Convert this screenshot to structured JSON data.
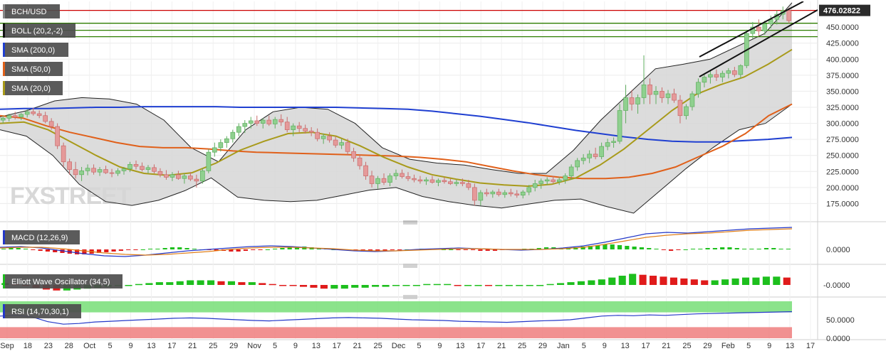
{
  "watermark": "FXSTREET",
  "chart_data": {
    "type": "candlestick",
    "symbol": "BCH/USD",
    "last_price": "476.02822",
    "x_ticks": [
      "Sep",
      "18",
      "23",
      "28",
      "Oct",
      "5",
      "9",
      "13",
      "17",
      "21",
      "25",
      "29",
      "Nov",
      "5",
      "9",
      "13",
      "17",
      "21",
      "25",
      "Dec",
      "5",
      "9",
      "13",
      "17",
      "21",
      "25",
      "29",
      "Jan",
      "5",
      "9",
      "13",
      "17",
      "21",
      "25",
      "29",
      "Feb",
      "5",
      "9",
      "13",
      "17"
    ],
    "price_axis": {
      "ticks": [
        "450.0000",
        "425.0000",
        "400.0000",
        "375.0000",
        "350.0000",
        "325.0000",
        "300.0000",
        "275.0000",
        "250.0000",
        "225.0000",
        "200.0000",
        "175.0000"
      ],
      "ylim": [
        150,
        490
      ]
    },
    "horizontal_levels": [
      {
        "value": 476,
        "color": "#cc0000"
      },
      {
        "value": 456,
        "color": "#2e7d00"
      },
      {
        "value": 445,
        "color": "#2e7d00"
      },
      {
        "value": 435,
        "color": "#2e7d00"
      }
    ],
    "indicators": [
      {
        "label": "BOLL (20,2,-2)",
        "color": "#111111"
      },
      {
        "label": "SMA (200,0)",
        "color": "#1f3fd1"
      },
      {
        "label": "SMA (50,0)",
        "color": "#e0601a"
      },
      {
        "label": "SMA (20,0)",
        "color": "#a89a1a"
      }
    ],
    "sma200": [
      322,
      323,
      323,
      324,
      325,
      325,
      326,
      326,
      326,
      326,
      325,
      325,
      325,
      325,
      325,
      324,
      323,
      322,
      319,
      315,
      311,
      306,
      301,
      295,
      289,
      284,
      279,
      275,
      272,
      271,
      271,
      273,
      275,
      278
    ],
    "sma50": [
      312,
      308,
      296,
      286,
      278,
      270,
      264,
      262,
      262,
      260,
      257,
      255,
      254,
      253,
      252,
      251,
      250,
      249,
      247,
      244,
      240,
      233,
      226,
      220,
      216,
      214,
      214,
      216,
      222,
      232,
      248,
      264,
      284,
      312,
      330
    ],
    "sma20": [
      300,
      302,
      290,
      270,
      250,
      232,
      222,
      219,
      223,
      238,
      258,
      272,
      284,
      286,
      280,
      265,
      247,
      232,
      220,
      213,
      207,
      204,
      202,
      205,
      215,
      235,
      260,
      290,
      320,
      345,
      360,
      372,
      392,
      415
    ],
    "boll_upper": [
      310,
      320,
      335,
      340,
      338,
      330,
      305,
      262,
      240,
      290,
      318,
      325,
      322,
      300,
      262,
      244,
      238,
      235,
      228,
      222,
      222,
      258,
      305,
      345,
      385,
      392,
      400,
      420,
      440,
      488
    ],
    "boll_lower": [
      290,
      280,
      250,
      205,
      178,
      172,
      180,
      195,
      215,
      185,
      180,
      178,
      180,
      188,
      196,
      200,
      186,
      178,
      172,
      168,
      174,
      180,
      182,
      170,
      160,
      195,
      230,
      262,
      290,
      300,
      330
    ],
    "candles": [
      {
        "o": 305,
        "h": 312,
        "l": 300,
        "c": 308
      },
      {
        "o": 308,
        "h": 315,
        "l": 303,
        "c": 312
      },
      {
        "o": 312,
        "h": 318,
        "l": 306,
        "c": 310
      },
      {
        "o": 310,
        "h": 316,
        "l": 305,
        "c": 314
      },
      {
        "o": 314,
        "h": 322,
        "l": 309,
        "c": 318
      },
      {
        "o": 318,
        "h": 324,
        "l": 312,
        "c": 315
      },
      {
        "o": 315,
        "h": 320,
        "l": 308,
        "c": 312
      },
      {
        "o": 312,
        "h": 318,
        "l": 300,
        "c": 303
      },
      {
        "o": 303,
        "h": 308,
        "l": 290,
        "c": 295
      },
      {
        "o": 295,
        "h": 300,
        "l": 260,
        "c": 265
      },
      {
        "o": 265,
        "h": 270,
        "l": 232,
        "c": 240
      },
      {
        "o": 240,
        "h": 245,
        "l": 220,
        "c": 228
      },
      {
        "o": 228,
        "h": 240,
        "l": 214,
        "c": 220
      },
      {
        "o": 220,
        "h": 232,
        "l": 210,
        "c": 226
      },
      {
        "o": 226,
        "h": 236,
        "l": 219,
        "c": 230
      },
      {
        "o": 230,
        "h": 236,
        "l": 220,
        "c": 224
      },
      {
        "o": 224,
        "h": 232,
        "l": 218,
        "c": 228
      },
      {
        "o": 228,
        "h": 234,
        "l": 221,
        "c": 223
      },
      {
        "o": 223,
        "h": 229,
        "l": 216,
        "c": 222
      },
      {
        "o": 222,
        "h": 230,
        "l": 218,
        "c": 226
      },
      {
        "o": 226,
        "h": 232,
        "l": 220,
        "c": 229
      },
      {
        "o": 229,
        "h": 240,
        "l": 224,
        "c": 236
      },
      {
        "o": 236,
        "h": 242,
        "l": 228,
        "c": 233
      },
      {
        "o": 233,
        "h": 239,
        "l": 225,
        "c": 228
      },
      {
        "o": 228,
        "h": 235,
        "l": 222,
        "c": 231
      },
      {
        "o": 231,
        "h": 236,
        "l": 222,
        "c": 225
      },
      {
        "o": 225,
        "h": 230,
        "l": 216,
        "c": 220
      },
      {
        "o": 220,
        "h": 227,
        "l": 212,
        "c": 216
      },
      {
        "o": 216,
        "h": 224,
        "l": 210,
        "c": 220
      },
      {
        "o": 220,
        "h": 226,
        "l": 212,
        "c": 214
      },
      {
        "o": 214,
        "h": 222,
        "l": 206,
        "c": 218
      },
      {
        "o": 218,
        "h": 224,
        "l": 210,
        "c": 213
      },
      {
        "o": 213,
        "h": 220,
        "l": 200,
        "c": 210
      },
      {
        "o": 210,
        "h": 230,
        "l": 206,
        "c": 226
      },
      {
        "o": 226,
        "h": 260,
        "l": 222,
        "c": 255
      },
      {
        "o": 255,
        "h": 270,
        "l": 248,
        "c": 262
      },
      {
        "o": 262,
        "h": 275,
        "l": 256,
        "c": 270
      },
      {
        "o": 270,
        "h": 280,
        "l": 262,
        "c": 276
      },
      {
        "o": 276,
        "h": 290,
        "l": 270,
        "c": 286
      },
      {
        "o": 286,
        "h": 300,
        "l": 280,
        "c": 295
      },
      {
        "o": 295,
        "h": 305,
        "l": 285,
        "c": 300
      },
      {
        "o": 300,
        "h": 310,
        "l": 292,
        "c": 304
      },
      {
        "o": 304,
        "h": 312,
        "l": 296,
        "c": 300
      },
      {
        "o": 300,
        "h": 308,
        "l": 292,
        "c": 305
      },
      {
        "o": 305,
        "h": 312,
        "l": 296,
        "c": 299
      },
      {
        "o": 299,
        "h": 310,
        "l": 292,
        "c": 306
      },
      {
        "o": 306,
        "h": 314,
        "l": 296,
        "c": 302
      },
      {
        "o": 302,
        "h": 310,
        "l": 286,
        "c": 290
      },
      {
        "o": 290,
        "h": 300,
        "l": 280,
        "c": 296
      },
      {
        "o": 296,
        "h": 302,
        "l": 286,
        "c": 292
      },
      {
        "o": 292,
        "h": 298,
        "l": 284,
        "c": 288
      },
      {
        "o": 288,
        "h": 294,
        "l": 280,
        "c": 286
      },
      {
        "o": 286,
        "h": 292,
        "l": 272,
        "c": 276
      },
      {
        "o": 276,
        "h": 284,
        "l": 268,
        "c": 280
      },
      {
        "o": 280,
        "h": 286,
        "l": 270,
        "c": 274
      },
      {
        "o": 274,
        "h": 280,
        "l": 262,
        "c": 266
      },
      {
        "o": 266,
        "h": 276,
        "l": 260,
        "c": 270
      },
      {
        "o": 270,
        "h": 276,
        "l": 250,
        "c": 256
      },
      {
        "o": 256,
        "h": 262,
        "l": 240,
        "c": 246
      },
      {
        "o": 246,
        "h": 252,
        "l": 228,
        "c": 234
      },
      {
        "o": 234,
        "h": 240,
        "l": 212,
        "c": 218
      },
      {
        "o": 218,
        "h": 226,
        "l": 200,
        "c": 206
      },
      {
        "o": 206,
        "h": 218,
        "l": 198,
        "c": 214
      },
      {
        "o": 214,
        "h": 222,
        "l": 204,
        "c": 208
      },
      {
        "o": 208,
        "h": 222,
        "l": 202,
        "c": 218
      },
      {
        "o": 218,
        "h": 228,
        "l": 212,
        "c": 222
      },
      {
        "o": 222,
        "h": 228,
        "l": 214,
        "c": 217
      },
      {
        "o": 217,
        "h": 224,
        "l": 210,
        "c": 214
      },
      {
        "o": 214,
        "h": 220,
        "l": 208,
        "c": 212
      },
      {
        "o": 212,
        "h": 218,
        "l": 206,
        "c": 210
      },
      {
        "o": 210,
        "h": 216,
        "l": 204,
        "c": 212
      },
      {
        "o": 212,
        "h": 218,
        "l": 206,
        "c": 208
      },
      {
        "o": 208,
        "h": 214,
        "l": 202,
        "c": 211
      },
      {
        "o": 211,
        "h": 216,
        "l": 206,
        "c": 209
      },
      {
        "o": 209,
        "h": 214,
        "l": 204,
        "c": 206
      },
      {
        "o": 206,
        "h": 212,
        "l": 202,
        "c": 208
      },
      {
        "o": 208,
        "h": 214,
        "l": 202,
        "c": 206
      },
      {
        "o": 206,
        "h": 212,
        "l": 196,
        "c": 200
      },
      {
        "o": 200,
        "h": 206,
        "l": 172,
        "c": 180
      },
      {
        "o": 180,
        "h": 196,
        "l": 172,
        "c": 192
      },
      {
        "o": 192,
        "h": 198,
        "l": 186,
        "c": 190
      },
      {
        "o": 190,
        "h": 196,
        "l": 184,
        "c": 193
      },
      {
        "o": 193,
        "h": 198,
        "l": 186,
        "c": 189
      },
      {
        "o": 189,
        "h": 196,
        "l": 184,
        "c": 192
      },
      {
        "o": 192,
        "h": 198,
        "l": 186,
        "c": 190
      },
      {
        "o": 190,
        "h": 196,
        "l": 184,
        "c": 188
      },
      {
        "o": 188,
        "h": 196,
        "l": 183,
        "c": 193
      },
      {
        "o": 193,
        "h": 204,
        "l": 188,
        "c": 200
      },
      {
        "o": 200,
        "h": 212,
        "l": 194,
        "c": 206
      },
      {
        "o": 206,
        "h": 214,
        "l": 198,
        "c": 210
      },
      {
        "o": 210,
        "h": 216,
        "l": 204,
        "c": 212
      },
      {
        "o": 212,
        "h": 218,
        "l": 206,
        "c": 209
      },
      {
        "o": 209,
        "h": 216,
        "l": 204,
        "c": 212
      },
      {
        "o": 212,
        "h": 222,
        "l": 206,
        "c": 218
      },
      {
        "o": 218,
        "h": 236,
        "l": 212,
        "c": 232
      },
      {
        "o": 232,
        "h": 246,
        "l": 226,
        "c": 242
      },
      {
        "o": 242,
        "h": 252,
        "l": 236,
        "c": 246
      },
      {
        "o": 246,
        "h": 258,
        "l": 238,
        "c": 252
      },
      {
        "o": 252,
        "h": 262,
        "l": 244,
        "c": 248
      },
      {
        "o": 248,
        "h": 270,
        "l": 244,
        "c": 264
      },
      {
        "o": 264,
        "h": 276,
        "l": 258,
        "c": 270
      },
      {
        "o": 270,
        "h": 278,
        "l": 262,
        "c": 272
      },
      {
        "o": 272,
        "h": 330,
        "l": 268,
        "c": 320
      },
      {
        "o": 320,
        "h": 360,
        "l": 300,
        "c": 340
      },
      {
        "o": 340,
        "h": 352,
        "l": 320,
        "c": 330
      },
      {
        "o": 330,
        "h": 345,
        "l": 315,
        "c": 340
      },
      {
        "o": 340,
        "h": 406,
        "l": 330,
        "c": 360
      },
      {
        "o": 360,
        "h": 370,
        "l": 330,
        "c": 345
      },
      {
        "o": 345,
        "h": 358,
        "l": 330,
        "c": 350
      },
      {
        "o": 350,
        "h": 356,
        "l": 332,
        "c": 340
      },
      {
        "o": 340,
        "h": 352,
        "l": 330,
        "c": 346
      },
      {
        "o": 346,
        "h": 354,
        "l": 332,
        "c": 336
      },
      {
        "o": 336,
        "h": 344,
        "l": 300,
        "c": 312
      },
      {
        "o": 312,
        "h": 330,
        "l": 306,
        "c": 326
      },
      {
        "o": 326,
        "h": 350,
        "l": 320,
        "c": 346
      },
      {
        "o": 346,
        "h": 370,
        "l": 340,
        "c": 364
      },
      {
        "o": 364,
        "h": 378,
        "l": 356,
        "c": 372
      },
      {
        "o": 372,
        "h": 382,
        "l": 362,
        "c": 376
      },
      {
        "o": 376,
        "h": 384,
        "l": 366,
        "c": 372
      },
      {
        "o": 372,
        "h": 382,
        "l": 364,
        "c": 378
      },
      {
        "o": 378,
        "h": 386,
        "l": 370,
        "c": 382
      },
      {
        "o": 382,
        "h": 388,
        "l": 372,
        "c": 376
      },
      {
        "o": 376,
        "h": 392,
        "l": 370,
        "c": 390
      },
      {
        "o": 390,
        "h": 446,
        "l": 386,
        "c": 440
      },
      {
        "o": 440,
        "h": 458,
        "l": 432,
        "c": 450
      },
      {
        "o": 450,
        "h": 462,
        "l": 436,
        "c": 444
      },
      {
        "o": 444,
        "h": 460,
        "l": 438,
        "c": 455
      },
      {
        "o": 455,
        "h": 468,
        "l": 448,
        "c": 462
      },
      {
        "o": 462,
        "h": 476,
        "l": 454,
        "c": 470
      },
      {
        "o": 470,
        "h": 482,
        "l": 462,
        "c": 476
      },
      {
        "o": 476,
        "h": 480,
        "l": 456,
        "c": 460
      }
    ],
    "macd": {
      "label": "MACD (12,26,9)",
      "ticks": [
        "0.0000"
      ],
      "hist": [
        1,
        2,
        2,
        1,
        -1,
        -2,
        -3,
        -4,
        -5,
        -6,
        -7,
        -7,
        -6,
        -5,
        -4,
        -3,
        -2,
        -1,
        -1,
        0,
        1,
        1,
        2,
        3,
        3,
        2,
        1,
        0,
        -1,
        -2,
        -2,
        -3,
        -3,
        -2,
        -1,
        -1,
        0,
        1,
        2,
        3,
        4,
        4,
        3,
        2,
        1,
        0,
        -1,
        -1,
        -2,
        -3,
        -3,
        -2,
        -2,
        -1,
        -1,
        0,
        0,
        1,
        1,
        1,
        0,
        0,
        -1,
        -1,
        -1,
        -2,
        -2,
        -2,
        -1,
        -1,
        0,
        1,
        1,
        2,
        3,
        3,
        2,
        2,
        3,
        4,
        5,
        6,
        7,
        7,
        6,
        5,
        4,
        3,
        2,
        1,
        -1,
        -2,
        -1,
        0,
        1,
        1,
        2,
        2,
        3,
        3,
        2,
        1,
        1,
        1,
        2,
        2,
        1,
        1
      ],
      "macd_line": [
        3,
        4,
        2,
        -2,
        -6,
        -9,
        -10,
        -8,
        -5,
        -2,
        0,
        2,
        4,
        5,
        4,
        2,
        0,
        -2,
        -3,
        -2,
        0,
        1,
        2,
        1,
        0,
        -1,
        0,
        2,
        5,
        10,
        16,
        22,
        24,
        23,
        25,
        27,
        29,
        30,
        31
      ],
      "signal_line": [
        2,
        3,
        3,
        1,
        -2,
        -5,
        -7,
        -8,
        -7,
        -5,
        -3,
        0,
        2,
        3,
        3,
        2,
        1,
        -1,
        -2,
        -2,
        -1,
        0,
        1,
        1,
        0,
        0,
        0,
        1,
        3,
        7,
        12,
        17,
        20,
        22,
        23,
        25,
        27,
        28,
        29
      ]
    },
    "ewo": {
      "label": "Elliott Wave Oscillator (34,5)",
      "ticks": [
        "-0.0000"
      ],
      "values": [
        2,
        1,
        -1,
        -3,
        -5,
        -6,
        -6,
        -5,
        -4,
        -3,
        -2,
        -1,
        0,
        1,
        2,
        3,
        3,
        4,
        5,
        5,
        5,
        4,
        4,
        3,
        3,
        2,
        1,
        0,
        -1,
        -2,
        -3,
        -4,
        -4,
        -4,
        -3,
        -3,
        -2,
        -2,
        -1,
        -1,
        0,
        1,
        1,
        1,
        0,
        0,
        0,
        -1,
        -1,
        -1,
        -1,
        0,
        0,
        1,
        2,
        3,
        4,
        5,
        6,
        8,
        10,
        12,
        11,
        10,
        9,
        8,
        7,
        6,
        5,
        5,
        6,
        7,
        8,
        8,
        9,
        9,
        8
      ]
    },
    "rsi": {
      "label": "RSI (14,70,30,1)",
      "ticks": [
        "50.0000",
        "0.0000"
      ],
      "overbought": 70,
      "oversold": 30,
      "values": [
        60,
        62,
        58,
        45,
        38,
        40,
        44,
        46,
        48,
        50,
        52,
        54,
        55,
        54,
        52,
        50,
        48,
        47,
        49,
        51,
        53,
        55,
        56,
        55,
        54,
        52,
        50,
        49,
        48,
        46,
        45,
        44,
        43,
        45,
        47,
        48,
        50,
        55,
        60,
        62,
        61,
        63,
        62,
        64,
        66,
        67,
        68,
        69,
        70,
        71,
        72
      ]
    }
  }
}
